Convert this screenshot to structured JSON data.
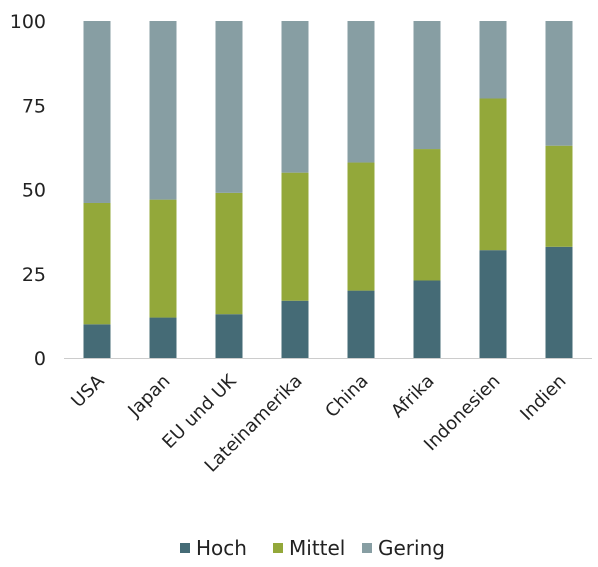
{
  "chart_data": {
    "type": "bar",
    "stacked": true,
    "categories": [
      "USA",
      "Japan",
      "EU und UK",
      "Lateinamerika",
      "China",
      "Afrika",
      "Indonesien",
      "Indien"
    ],
    "series": [
      {
        "name": "Hoch",
        "color": "#456b76",
        "values": [
          10,
          12,
          13,
          17,
          20,
          23,
          32,
          33
        ]
      },
      {
        "name": "Mittel",
        "color": "#93a83a",
        "values": [
          36,
          35,
          36,
          38,
          38,
          39,
          45,
          30
        ]
      },
      {
        "name": "Gering",
        "color": "#879ea3",
        "values": [
          54,
          53,
          51,
          45,
          42,
          38,
          23,
          37
        ]
      }
    ],
    "yticks": [
      0,
      25,
      50,
      75,
      100
    ],
    "ylim": [
      0,
      100
    ],
    "grid": false,
    "legend_position": "bottom"
  }
}
